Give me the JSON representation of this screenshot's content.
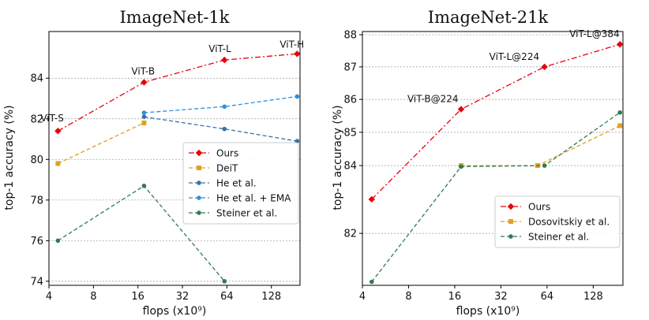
{
  "chart_data": [
    {
      "type": "line",
      "title": "ImageNet-1k",
      "xlabel": "flops (x10⁹)",
      "ylabel": "top-1 accuracy (%)",
      "x_scale": "log2",
      "xlim": [
        4,
        200
      ],
      "ylim": [
        73.8,
        86.3
      ],
      "xticks": [
        4,
        8,
        16,
        32,
        64,
        128
      ],
      "yticks": [
        74,
        76,
        78,
        80,
        82,
        84
      ],
      "grid": "horizontal dotted",
      "legend_position": "center-right",
      "series": [
        {
          "name": "Ours",
          "color": "#e8000b",
          "dash": "dashdot",
          "marker": "diamond",
          "x": [
            4.6,
            17.6,
            61.6,
            191.2
          ],
          "y": [
            81.4,
            83.8,
            84.9,
            85.2
          ]
        },
        {
          "name": "DeiT",
          "color": "#e0a020",
          "dash": "dashed",
          "marker": "square",
          "x": [
            4.6,
            17.6
          ],
          "y": [
            79.8,
            81.8
          ]
        },
        {
          "name": "He et al.",
          "color": "#3a6fa8",
          "dash": "dashed",
          "marker": "circle",
          "x": [
            17.6,
            61.6,
            191.2
          ],
          "y": [
            82.1,
            81.5,
            80.9
          ]
        },
        {
          "name": "He et al. + EMA",
          "color": "#2b8fe0",
          "dash": "dashed",
          "marker": "circle",
          "x": [
            17.6,
            61.6,
            191.2
          ],
          "y": [
            82.3,
            82.6,
            83.1
          ]
        },
        {
          "name": "Steiner et al.",
          "color": "#2e7d4f",
          "dash": "dashed",
          "marker": "circle",
          "x": [
            4.6,
            17.6,
            61.6
          ],
          "y": [
            76.0,
            78.7,
            74.0
          ]
        }
      ],
      "annotations": [
        {
          "text": "ViT-S",
          "x": 4.6,
          "y": 81.4
        },
        {
          "text": "ViT-B",
          "x": 17.6,
          "y": 83.8
        },
        {
          "text": "ViT-L",
          "x": 61.6,
          "y": 84.9
        },
        {
          "text": "ViT-H",
          "x": 191.2,
          "y": 85.2
        }
      ]
    },
    {
      "type": "line",
      "title": "ImageNet-21k",
      "xlabel": "flops (x10⁹)",
      "ylabel": "top-1 accuracy (%)",
      "x_scale": "log2",
      "y_scale": "log",
      "xlim": [
        4,
        200
      ],
      "ylim": [
        80.5,
        88.1
      ],
      "xticks": [
        4,
        8,
        16,
        32,
        64,
        128
      ],
      "yticks": [
        82,
        84,
        85,
        86,
        87,
        88
      ],
      "grid": "horizontal dotted",
      "legend_position": "lower-right",
      "series": [
        {
          "name": "Ours",
          "color": "#e8000b",
          "dash": "dashdot",
          "marker": "diamond",
          "x": [
            4.6,
            17.6,
            61.6,
            191.2
          ],
          "y": [
            83.0,
            85.7,
            87.0,
            87.7
          ]
        },
        {
          "name": "Dosovitskiy et al.",
          "color": "#e0a020",
          "dash": "dashed",
          "marker": "square",
          "x": [
            17.6,
            55.5,
            191.2
          ],
          "y": [
            84.0,
            84.0,
            85.2
          ]
        },
        {
          "name": "Steiner et al.",
          "color": "#2e7d4f",
          "dash": "dashed",
          "marker": "circle",
          "x": [
            4.6,
            17.6,
            61.6,
            191.2
          ],
          "y": [
            80.6,
            83.97,
            84.0,
            85.6
          ]
        }
      ],
      "annotations": [
        {
          "text": "ViT-B@224",
          "x": 17.6,
          "y": 85.7
        },
        {
          "text": "ViT-L@224",
          "x": 61.6,
          "y": 87.0
        },
        {
          "text": "ViT-L@384",
          "x": 191.2,
          "y": 87.7
        }
      ]
    }
  ]
}
